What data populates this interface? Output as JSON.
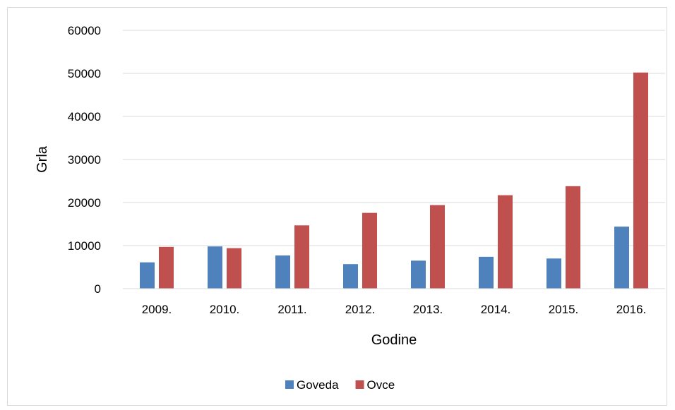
{
  "chart_data": {
    "type": "bar",
    "title": "",
    "xlabel": "Godine",
    "ylabel": "Grla",
    "categories": [
      "2009.",
      "2010.",
      "2011.",
      "2012.",
      "2013.",
      "2014.",
      "2015.",
      "2016."
    ],
    "series": [
      {
        "name": "Goveda",
        "color": "#4f81bd",
        "values": [
          6100,
          9800,
          7700,
          5700,
          6500,
          7400,
          7000,
          14400
        ]
      },
      {
        "name": "Ovce",
        "color": "#c0504d",
        "values": [
          9700,
          9400,
          14700,
          17600,
          19400,
          21700,
          23800,
          50200
        ]
      }
    ],
    "ylim": [
      0,
      60000
    ],
    "yticks": [
      0,
      10000,
      20000,
      30000,
      40000,
      50000,
      60000
    ],
    "grid": true,
    "legend": "bottom"
  }
}
